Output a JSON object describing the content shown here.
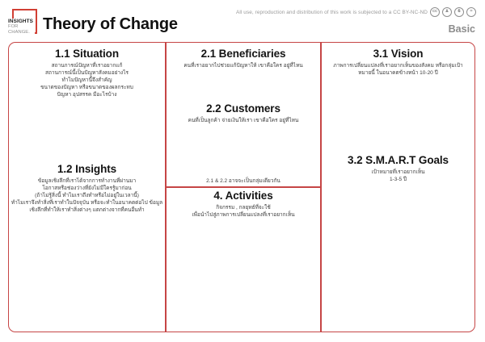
{
  "header": {
    "logo": {
      "line1": "INSIGHTS",
      "line2": "FOR",
      "line3": "CHANGE."
    },
    "title": "Theory of Change",
    "license": {
      "text": "All use, reproduction and distribution of this work is subjected to a CC BY-NC-ND",
      "icons": [
        {
          "name": "cc-icon",
          "glyph": "cc"
        },
        {
          "name": "attribution-icon",
          "glyph": "♟"
        },
        {
          "name": "non-commercial-icon",
          "glyph": "$"
        },
        {
          "name": "no-derivatives-icon",
          "glyph": "="
        }
      ]
    },
    "variant_label": "Basic"
  },
  "canvas": {
    "situation": {
      "heading": "1.1 Situation",
      "lines": [
        "สถานการณ์ปัญหาที่เราอยากแก้",
        "สถานการณ์นี้เป็นปัญหาสังคมอย่างไร",
        "ทำไมปัญหานี้จึงสำคัญ",
        "ขนาดของปัญหา หรือขนาดของผลกระทบ",
        "ปัญหา อุปสรรค มีอะไรบ้าง"
      ]
    },
    "insights": {
      "heading": "1.2 Insights",
      "lines": [
        "ข้อมูลเชิงลึกที่เราได้จากการทำงานที่ผ่านมา",
        "โอกาสหรือช่องว่างที่ยังไม่มีใครรู้มาก่อน",
        "(ถ้าไม่รู้สิ่งนี้ ทำไมเราถึงทำหรือไม่อยู่ในเวลานี้)",
        "ทำไมเราจึงทำสิ่งที่เราทำในปัจจุบัน หรือจะทำในอนาคตต่อไป ข้อมูล",
        "เชิงลึกที่ทำให้เราทำสิ่งต่างๆ แตกต่างจากที่คนอื่นทำ"
      ]
    },
    "beneficiaries": {
      "heading": "2.1 Beneficiaries",
      "lines": [
        "คนที่เราอยากไปช่วยแก้ปัญหาให้ เขาคือใคร อยู่ที่ไหน"
      ]
    },
    "customers": {
      "heading": "2.2 Customers",
      "lines": [
        "คนที่เป็นลูกค้า จ่ายเงินให้เรา เขาคือใคร อยู่ที่ไหน"
      ]
    },
    "note": "2.1 & 2.2 อาจจะเป็นกลุ่มเดียวกัน",
    "activities": {
      "heading": "4. Activities",
      "lines": [
        "กิจกรรม , กลยุทธ์ที่จะใช้",
        "เพื่อนำไปสู่ภาพการเปลี่ยนแปลงที่เราอยากเห็น"
      ]
    },
    "vision": {
      "heading": "3.1 Vision",
      "lines": [
        "ภาพการเปลี่ยนแปลงที่เราอยากเห็นของสังคม หรือกลุ่มเป้า",
        "หมายนี้ ในอนาคตข้างหน้า 10-20 ปี"
      ]
    },
    "smart_goals": {
      "heading": "3.2 S.M.A.R.T Goals",
      "lines": [
        "เป้าหมายที่เราอยากเห็น",
        "1-3-5 ปี"
      ]
    }
  },
  "colors": {
    "accent_red": "#c64545",
    "logo_red": "#d13f34",
    "muted_gray": "#8f8f8f"
  }
}
